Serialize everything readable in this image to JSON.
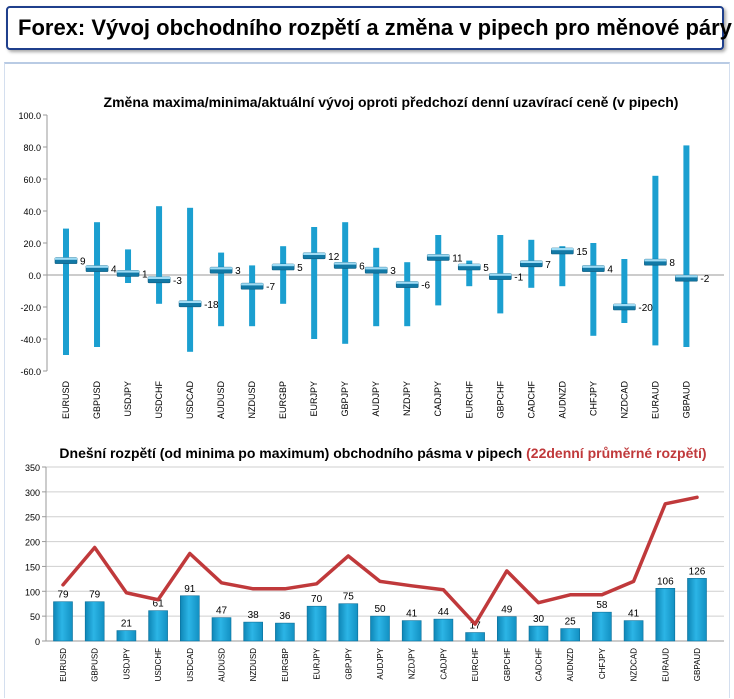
{
  "header": {
    "title": "Forex: Vývoj obchodního rozpětí a změna v pipech pro měnové páry"
  },
  "colors": {
    "bar": "#1b9fd0",
    "line": "#c0393b",
    "accent_red": "#c0393b",
    "title_border": "#1f3f8c"
  },
  "chart_data": [
    {
      "type": "bar",
      "subtype": "range-with-marker",
      "title": "Změna maxima/minima/aktuální vývoj oproti předchozí denní uzavírací ceně (v pipech)",
      "categories": [
        "EURUSD",
        "GBPUSD",
        "USDJPY",
        "USDCHF",
        "USDCAD",
        "AUDUSD",
        "NZDUSD",
        "EURGBP",
        "EURJPY",
        "GBPJPY",
        "AUDJPY",
        "NZDJPY",
        "CADJPY",
        "EURCHF",
        "GBPCHF",
        "CADCHF",
        "AUDNZD",
        "CHFJPY",
        "NZDCAD",
        "EURAUD",
        "GBPAUD"
      ],
      "series": [
        {
          "values": [
            29,
            33,
            16,
            43,
            42,
            14,
            6,
            18,
            30,
            33,
            17,
            8,
            25,
            9,
            25,
            22,
            18,
            20,
            10,
            62,
            81
          ]
        },
        {
          "values": [
            -50,
            -45,
            -5,
            -18,
            -48,
            -32,
            -32,
            -18,
            -40,
            -43,
            -32,
            -32,
            -19,
            -7,
            -24,
            -8,
            -7,
            -38,
            -30,
            -44,
            -45
          ]
        },
        {
          "values": [
            9,
            4,
            1,
            -3,
            -18,
            3,
            -7,
            5,
            12,
            6,
            3,
            -6,
            11,
            5,
            -1,
            7,
            15,
            4,
            -20,
            8,
            -2
          ]
        }
      ],
      "ylim": [
        -60,
        100
      ],
      "yticks": [
        "100.0",
        "80.0",
        "60.0",
        "40.0",
        "20.0",
        "0.0",
        "-20.0",
        "-40.0",
        "-60.0"
      ],
      "grid": false,
      "legend": "none"
    },
    {
      "type": "bar",
      "overlay": "line",
      "title": "Dnešní rozpětí (od minima po maximum) obchodního pásma v pipech",
      "title_highlight": "(22denní průměrné rozpětí)",
      "categories": [
        "EURUSD",
        "GBPUSD",
        "USDJPY",
        "USDCHF",
        "USDCAD",
        "AUDUSD",
        "NZDUSD",
        "EURGBP",
        "EURJPY",
        "GBPJPY",
        "AUDJPY",
        "NZDJPY",
        "CADJPY",
        "EURCHF",
        "GBPCHF",
        "CADCHF",
        "AUDNZD",
        "CHFJPY",
        "NZDCAD",
        "EURAUD",
        "GBPAUD"
      ],
      "series": [
        {
          "type": "bar",
          "values": [
            79,
            79,
            21,
            61,
            91,
            47,
            38,
            36,
            70,
            75,
            50,
            41,
            44,
            17,
            49,
            30,
            25,
            58,
            41,
            106,
            126
          ]
        },
        {
          "type": "line",
          "values": [
            113,
            188,
            97,
            83,
            176,
            117,
            105,
            105,
            115,
            171,
            120,
            111,
            103,
            34,
            141,
            77,
            93,
            93,
            120,
            276,
            289
          ]
        }
      ],
      "ylim": [
        0,
        350
      ],
      "yticks": [
        "350",
        "300",
        "250",
        "200",
        "150",
        "100",
        "50",
        "0"
      ],
      "grid": true,
      "legend": "none"
    }
  ]
}
